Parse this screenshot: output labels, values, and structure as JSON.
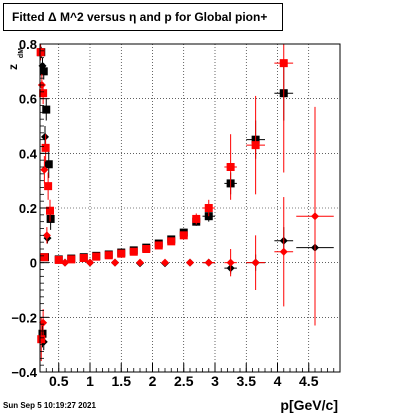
{
  "window": {
    "title": "Fitted Δ M^2 versus η and p for Global pion+"
  },
  "footer": {
    "timestamp": "Sun Sep  5 10:19:27 2021"
  },
  "chart_data": {
    "type": "scatter",
    "title": "Fitted Δ M^2 versus η and p for Global pion+",
    "xlabel": "p[GeV/c]",
    "ylabel": "z",
    "ylabel_sub": "dM",
    "xlim": [
      0.2,
      5.0
    ],
    "ylim": [
      -0.4,
      0.8
    ],
    "xticks": [
      0.5,
      1,
      1.5,
      2,
      2.5,
      3,
      3.5,
      4,
      4.5
    ],
    "xtick_labels": [
      "0.5",
      "1",
      "1.5",
      "2",
      "2.5",
      "3",
      "3.5",
      "4",
      "4.5"
    ],
    "yticks": [
      -0.4,
      -0.2,
      0,
      0.2,
      0.4,
      0.6,
      0.8
    ],
    "ytick_labels": [
      "−0.4",
      "−0.2",
      "0",
      "0.2",
      "0.4",
      "0.6",
      "0.8"
    ],
    "grid": true,
    "colors": {
      "black": "#000000",
      "red": "#ff0000"
    },
    "series": [
      {
        "color": "#000000",
        "marker": "square",
        "points": [
          {
            "x": 0.22,
            "y": 0.77,
            "ex": 0.02,
            "ey": 0.02
          },
          {
            "x": 0.26,
            "y": 0.7,
            "ex": 0.02,
            "ey": 0.03
          },
          {
            "x": 0.3,
            "y": 0.56,
            "ex": 0.02,
            "ey": 0.04
          },
          {
            "x": 0.34,
            "y": 0.36,
            "ex": 0.02,
            "ey": 0.05
          },
          {
            "x": 0.37,
            "y": 0.16,
            "ex": 0.02,
            "ey": 0.04
          },
          {
            "x": 0.24,
            "y": -0.26,
            "ex": 0.02,
            "ey": 0.05
          },
          {
            "x": 0.28,
            "y": 0.02,
            "ex": 0.02,
            "ey": 0.01
          },
          {
            "x": 0.5,
            "y": 0.012,
            "ex": 0.05,
            "ey": 0.003
          },
          {
            "x": 0.7,
            "y": 0.015,
            "ex": 0.05,
            "ey": 0.003
          },
          {
            "x": 0.9,
            "y": 0.02,
            "ex": 0.05,
            "ey": 0.003
          },
          {
            "x": 1.1,
            "y": 0.025,
            "ex": 0.05,
            "ey": 0.003
          },
          {
            "x": 1.3,
            "y": 0.03,
            "ex": 0.05,
            "ey": 0.004
          },
          {
            "x": 1.5,
            "y": 0.037,
            "ex": 0.05,
            "ey": 0.004
          },
          {
            "x": 1.7,
            "y": 0.045,
            "ex": 0.05,
            "ey": 0.005
          },
          {
            "x": 1.9,
            "y": 0.055,
            "ex": 0.05,
            "ey": 0.006
          },
          {
            "x": 2.1,
            "y": 0.07,
            "ex": 0.05,
            "ey": 0.008
          },
          {
            "x": 2.3,
            "y": 0.085,
            "ex": 0.05,
            "ey": 0.01
          },
          {
            "x": 2.5,
            "y": 0.11,
            "ex": 0.05,
            "ey": 0.012
          },
          {
            "x": 2.7,
            "y": 0.15,
            "ex": 0.05,
            "ey": 0.015
          },
          {
            "x": 2.9,
            "y": 0.17,
            "ex": 0.1,
            "ey": 0.02
          },
          {
            "x": 3.25,
            "y": 0.29,
            "ex": 0.1,
            "ey": 0.04
          },
          {
            "x": 3.65,
            "y": 0.45,
            "ex": 0.15,
            "ey": 0.07
          },
          {
            "x": 4.1,
            "y": 0.62,
            "ex": 0.15,
            "ey": 0.1
          }
        ]
      },
      {
        "color": "#000000",
        "marker": "diamond",
        "points": [
          {
            "x": 0.24,
            "y": 0.72,
            "ex": 0.01,
            "ey": 0.03
          },
          {
            "x": 0.28,
            "y": 0.46,
            "ex": 0.01,
            "ey": 0.04
          },
          {
            "x": 0.32,
            "y": 0.09,
            "ex": 0.01,
            "ey": 0.02
          },
          {
            "x": 0.26,
            "y": -0.29,
            "ex": 0.01,
            "ey": 0.03
          },
          {
            "x": 0.6,
            "y": 0.0,
            "ex": 0.05,
            "ey": 0.002
          },
          {
            "x": 1.0,
            "y": 0.0,
            "ex": 0.05,
            "ey": 0.002
          },
          {
            "x": 1.4,
            "y": 0.0,
            "ex": 0.05,
            "ey": 0.002
          },
          {
            "x": 1.8,
            "y": -0.002,
            "ex": 0.05,
            "ey": 0.003
          },
          {
            "x": 2.2,
            "y": -0.002,
            "ex": 0.05,
            "ey": 0.004
          },
          {
            "x": 2.6,
            "y": 0.0,
            "ex": 0.05,
            "ey": 0.005
          },
          {
            "x": 2.9,
            "y": 0.0,
            "ex": 0.1,
            "ey": 0.008
          },
          {
            "x": 3.25,
            "y": -0.02,
            "ex": 0.1,
            "ey": 0.02
          },
          {
            "x": 3.65,
            "y": 0.0,
            "ex": 0.15,
            "ey": 0.03
          },
          {
            "x": 4.1,
            "y": 0.08,
            "ex": 0.15,
            "ey": 0.05
          },
          {
            "x": 4.6,
            "y": 0.055,
            "ex": 0.3,
            "ey": 0.07
          }
        ]
      },
      {
        "color": "#ff0000",
        "marker": "square",
        "points": [
          {
            "x": 0.21,
            "y": 0.77,
            "ex": 0.02,
            "ey": 0.03
          },
          {
            "x": 0.25,
            "y": 0.62,
            "ex": 0.02,
            "ey": 0.04
          },
          {
            "x": 0.29,
            "y": 0.42,
            "ex": 0.02,
            "ey": 0.05
          },
          {
            "x": 0.33,
            "y": 0.28,
            "ex": 0.02,
            "ey": 0.05
          },
          {
            "x": 0.36,
            "y": 0.19,
            "ex": 0.02,
            "ey": 0.04
          },
          {
            "x": 0.22,
            "y": -0.28,
            "ex": 0.02,
            "ey": 0.08
          },
          {
            "x": 0.27,
            "y": 0.02,
            "ex": 0.02,
            "ey": 0.01
          },
          {
            "x": 0.5,
            "y": 0.01,
            "ex": 0.05,
            "ey": 0.003
          },
          {
            "x": 0.7,
            "y": 0.012,
            "ex": 0.05,
            "ey": 0.003
          },
          {
            "x": 0.9,
            "y": 0.017,
            "ex": 0.05,
            "ey": 0.003
          },
          {
            "x": 1.1,
            "y": 0.022,
            "ex": 0.05,
            "ey": 0.003
          },
          {
            "x": 1.3,
            "y": 0.027,
            "ex": 0.05,
            "ey": 0.004
          },
          {
            "x": 1.5,
            "y": 0.033,
            "ex": 0.05,
            "ey": 0.004
          },
          {
            "x": 1.7,
            "y": 0.04,
            "ex": 0.05,
            "ey": 0.005
          },
          {
            "x": 1.9,
            "y": 0.05,
            "ex": 0.05,
            "ey": 0.006
          },
          {
            "x": 2.1,
            "y": 0.063,
            "ex": 0.05,
            "ey": 0.008
          },
          {
            "x": 2.3,
            "y": 0.078,
            "ex": 0.05,
            "ey": 0.01
          },
          {
            "x": 2.5,
            "y": 0.1,
            "ex": 0.05,
            "ey": 0.012
          },
          {
            "x": 2.7,
            "y": 0.16,
            "ex": 0.05,
            "ey": 0.02
          },
          {
            "x": 2.9,
            "y": 0.2,
            "ex": 0.1,
            "ey": 0.03
          },
          {
            "x": 3.25,
            "y": 0.35,
            "ex": 0.1,
            "ey": 0.12
          },
          {
            "x": 3.65,
            "y": 0.43,
            "ex": 0.15,
            "ey": 0.18
          },
          {
            "x": 4.1,
            "y": 0.73,
            "ex": 0.15,
            "ey": 0.4
          }
        ]
      },
      {
        "color": "#ff0000",
        "marker": "diamond",
        "points": [
          {
            "x": 0.23,
            "y": 0.65,
            "ex": 0.01,
            "ey": 0.04
          },
          {
            "x": 0.27,
            "y": 0.34,
            "ex": 0.01,
            "ey": 0.05
          },
          {
            "x": 0.31,
            "y": 0.1,
            "ex": 0.01,
            "ey": 0.03
          },
          {
            "x": 0.25,
            "y": -0.22,
            "ex": 0.01,
            "ey": 0.05
          },
          {
            "x": 0.6,
            "y": 0.0,
            "ex": 0.05,
            "ey": 0.002
          },
          {
            "x": 1.0,
            "y": 0.0,
            "ex": 0.05,
            "ey": 0.002
          },
          {
            "x": 1.4,
            "y": 0.0,
            "ex": 0.05,
            "ey": 0.003
          },
          {
            "x": 1.8,
            "y": 0.0,
            "ex": 0.05,
            "ey": 0.004
          },
          {
            "x": 2.2,
            "y": 0.0,
            "ex": 0.05,
            "ey": 0.005
          },
          {
            "x": 2.6,
            "y": 0.0,
            "ex": 0.05,
            "ey": 0.006
          },
          {
            "x": 2.9,
            "y": 0.0,
            "ex": 0.1,
            "ey": 0.01
          },
          {
            "x": 3.25,
            "y": 0.0,
            "ex": 0.1,
            "ey": 0.05
          },
          {
            "x": 3.65,
            "y": 0.0,
            "ex": 0.15,
            "ey": 0.1
          },
          {
            "x": 4.1,
            "y": 0.04,
            "ex": 0.15,
            "ey": 0.2
          },
          {
            "x": 4.6,
            "y": 0.17,
            "ex": 0.3,
            "ey": 0.4
          }
        ]
      }
    ]
  }
}
